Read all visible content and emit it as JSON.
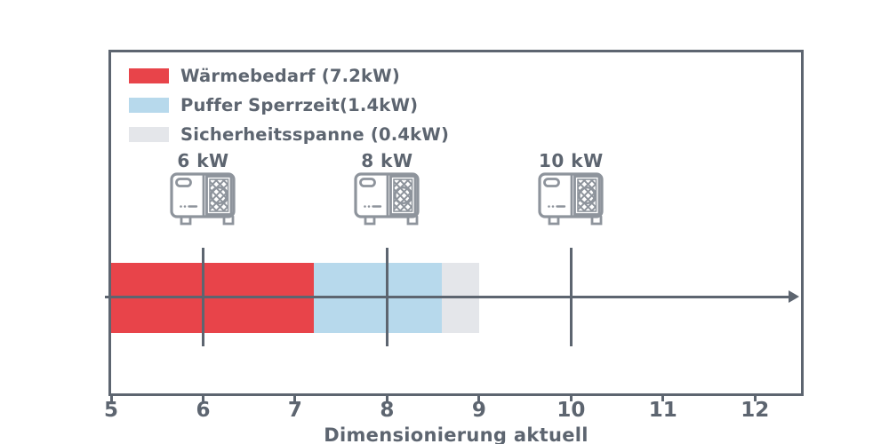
{
  "chart_data": {
    "type": "bar",
    "orientation": "horizontal-stacked",
    "xlabel": "Dimensionierung aktuell",
    "xlim": [
      5,
      12.5
    ],
    "x_ticks": [
      5,
      6,
      7,
      8,
      9,
      10,
      11,
      12
    ],
    "grid": false,
    "bar": {
      "y_center_kw_axis": true,
      "segments": [
        {
          "name": "Wärmebedarf",
          "start": 5.0,
          "end": 7.2,
          "value_kw": 7.2,
          "color": "#e8444a"
        },
        {
          "name": "Puffer Sperrzeit",
          "start": 7.2,
          "end": 8.6,
          "value_kw": 1.4,
          "color": "#b7d9ec"
        },
        {
          "name": "Sicherheitsspanne",
          "start": 8.6,
          "end": 9.0,
          "value_kw": 0.4,
          "color": "#e4e6ea"
        }
      ]
    },
    "pumps": [
      {
        "label": "6 kW",
        "value": 6
      },
      {
        "label": "8 kW",
        "value": 8
      },
      {
        "label": "10 kW",
        "value": 10
      }
    ],
    "legend": {
      "position": "upper-left",
      "items": [
        {
          "label": "Wärmebedarf (7.2kW)",
          "color": "#e8444a"
        },
        {
          "label": "Puffer Sperrzeit(1.4kW)",
          "color": "#b7d9ec"
        },
        {
          "label": "Sicherheitsspanne (0.4kW)",
          "color": "#e4e6ea"
        }
      ]
    },
    "colors": {
      "axis": "#5d6570",
      "icon": "#8e949c",
      "background": "#ffffff"
    }
  }
}
